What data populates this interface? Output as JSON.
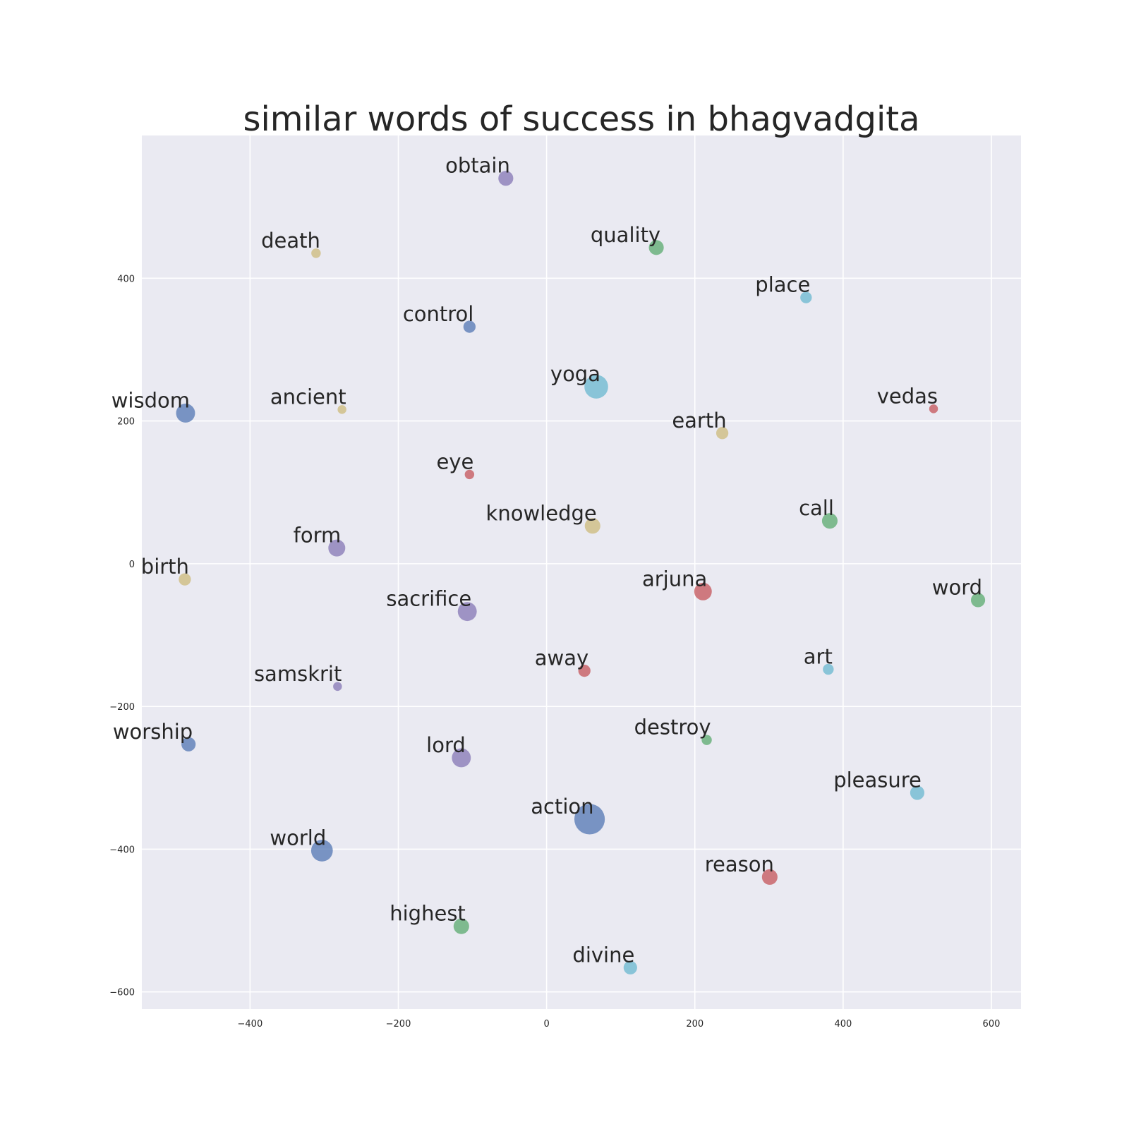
{
  "chart_data": {
    "type": "scatter",
    "title": "similar words of success in bhagvadgita",
    "xlabel": "",
    "ylabel": "",
    "xlim": [
      -546,
      640
    ],
    "ylim": [
      -624,
      600
    ],
    "xticks": [
      -400,
      -200,
      0,
      200,
      400,
      600
    ],
    "yticks": [
      -600,
      -400,
      -200,
      0,
      200,
      400
    ],
    "xtick_labels": [
      "−400",
      "−200",
      "0",
      "200",
      "400",
      "600"
    ],
    "ytick_labels": [
      "−600",
      "−400",
      "−200",
      "0",
      "200",
      "400"
    ],
    "grid": true,
    "legend": "none",
    "colors": {
      "background": "#eaeaf2",
      "grid": "#ffffff",
      "blue": "#4c72b0",
      "green": "#55a868",
      "red": "#c44e52",
      "purple": "#8172b2",
      "khaki": "#ccb974",
      "cyan": "#64b5cd"
    },
    "points": [
      {
        "word": "obtain",
        "x": -55,
        "y": 540,
        "size": 2.2,
        "color": "purple"
      },
      {
        "word": "death",
        "x": -311,
        "y": 435,
        "size": 1.4,
        "color": "khaki"
      },
      {
        "word": "quality",
        "x": 148,
        "y": 443,
        "size": 2.2,
        "color": "green"
      },
      {
        "word": "place",
        "x": 350,
        "y": 373,
        "size": 1.7,
        "color": "cyan"
      },
      {
        "word": "control",
        "x": -104,
        "y": 332,
        "size": 1.8,
        "color": "blue"
      },
      {
        "word": "yoga",
        "x": 67,
        "y": 248,
        "size": 3.5,
        "color": "cyan"
      },
      {
        "word": "wisdom",
        "x": -487,
        "y": 211,
        "size": 2.8,
        "color": "blue"
      },
      {
        "word": "ancient",
        "x": -276,
        "y": 216,
        "size": 1.3,
        "color": "khaki"
      },
      {
        "word": "vedas",
        "x": 522,
        "y": 217,
        "size": 1.3,
        "color": "red"
      },
      {
        "word": "earth",
        "x": 237,
        "y": 183,
        "size": 1.8,
        "color": "khaki"
      },
      {
        "word": "eye",
        "x": -104,
        "y": 125,
        "size": 1.4,
        "color": "red"
      },
      {
        "word": "knowledge",
        "x": 62,
        "y": 53,
        "size": 2.3,
        "color": "khaki"
      },
      {
        "word": "call",
        "x": 382,
        "y": 60,
        "size": 2.3,
        "color": "green"
      },
      {
        "word": "form",
        "x": -283,
        "y": 22,
        "size": 2.5,
        "color": "purple"
      },
      {
        "word": "birth",
        "x": -488,
        "y": -22,
        "size": 1.8,
        "color": "khaki"
      },
      {
        "word": "arjuna",
        "x": 211,
        "y": -39,
        "size": 2.6,
        "color": "red"
      },
      {
        "word": "word",
        "x": 582,
        "y": -51,
        "size": 2.1,
        "color": "green"
      },
      {
        "word": "sacrifice",
        "x": -107,
        "y": -67,
        "size": 2.8,
        "color": "purple"
      },
      {
        "word": "away",
        "x": 51,
        "y": -150,
        "size": 1.8,
        "color": "red"
      },
      {
        "word": "art",
        "x": 380,
        "y": -148,
        "size": 1.6,
        "color": "cyan"
      },
      {
        "word": "samskrit",
        "x": -282,
        "y": -172,
        "size": 1.3,
        "color": "purple"
      },
      {
        "word": "worship",
        "x": -483,
        "y": -253,
        "size": 2.1,
        "color": "blue"
      },
      {
        "word": "destroy",
        "x": 216,
        "y": -247,
        "size": 1.5,
        "color": "green"
      },
      {
        "word": "lord",
        "x": -115,
        "y": -272,
        "size": 2.8,
        "color": "purple"
      },
      {
        "word": "pleasure",
        "x": 500,
        "y": -321,
        "size": 2.1,
        "color": "cyan"
      },
      {
        "word": "action",
        "x": 58,
        "y": -358,
        "size": 4.5,
        "color": "blue"
      },
      {
        "word": "world",
        "x": -303,
        "y": -402,
        "size": 3.2,
        "color": "blue"
      },
      {
        "word": "reason",
        "x": 301,
        "y": -439,
        "size": 2.3,
        "color": "red"
      },
      {
        "word": "highest",
        "x": -115,
        "y": -508,
        "size": 2.3,
        "color": "green"
      },
      {
        "word": "divine",
        "x": 113,
        "y": -566,
        "size": 2.0,
        "color": "cyan"
      }
    ]
  }
}
